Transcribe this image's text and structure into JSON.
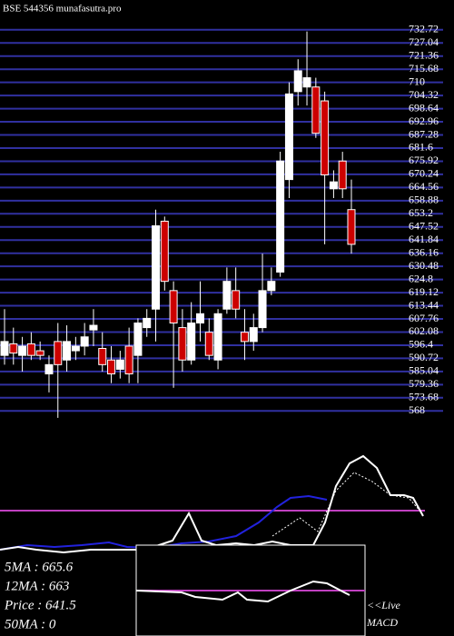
{
  "chart_data": {
    "type": "candlestick",
    "title": "BSE 544356 munafasutra.pro",
    "ohlc": [
      [
        592,
        612,
        588,
        598
      ],
      [
        597,
        604,
        588,
        593
      ],
      [
        592,
        600,
        585,
        596
      ],
      [
        597,
        602,
        590,
        592
      ],
      [
        594,
        598,
        590,
        592
      ],
      [
        584,
        592,
        576,
        588
      ],
      [
        598,
        606,
        565,
        588
      ],
      [
        590,
        605,
        585,
        598
      ],
      [
        594,
        600,
        590,
        596
      ],
      [
        596,
        606,
        592,
        600
      ],
      [
        603,
        612,
        596,
        605
      ],
      [
        595,
        602,
        585,
        588
      ],
      [
        590,
        596,
        580,
        584
      ],
      [
        586,
        594,
        582,
        590
      ],
      [
        596,
        604,
        580,
        584
      ],
      [
        592,
        608,
        580,
        606
      ],
      [
        604,
        612,
        600,
        608
      ],
      [
        612,
        655,
        598,
        648
      ],
      [
        650,
        652,
        620,
        624
      ],
      [
        620,
        624,
        578,
        606
      ],
      [
        604,
        612,
        585,
        590
      ],
      [
        590,
        615,
        588,
        606
      ],
      [
        606,
        624,
        598,
        610
      ],
      [
        602,
        608,
        590,
        592
      ],
      [
        590,
        612,
        586,
        610
      ],
      [
        612,
        630,
        610,
        624
      ],
      [
        620,
        630,
        608,
        612
      ],
      [
        602,
        612,
        590,
        598
      ],
      [
        598,
        610,
        594,
        604
      ],
      [
        604,
        636,
        602,
        620
      ],
      [
        620,
        630,
        618,
        624
      ],
      [
        628,
        680,
        626,
        676
      ],
      [
        668,
        710,
        660,
        705
      ],
      [
        706,
        720,
        700,
        715
      ],
      [
        708,
        732,
        700,
        712
      ],
      [
        708,
        712,
        686,
        688
      ],
      [
        702,
        706,
        640,
        670
      ],
      [
        664,
        672,
        660,
        667
      ],
      [
        676,
        680,
        660,
        664
      ],
      [
        655,
        668,
        636,
        640
      ]
    ],
    "up_color": "#ffffff",
    "down_color": "#cc0000",
    "grid": true,
    "grid_color": "#3030a0",
    "ylim": [
      563,
      735
    ],
    "yticks": [
      732.72,
      727.04,
      721.36,
      715.68,
      710,
      704.32,
      698.64,
      692.96,
      687.28,
      681.6,
      675.92,
      670.24,
      664.56,
      658.88,
      653.2,
      647.52,
      641.84,
      636.16,
      630.48,
      624.8,
      619.12,
      613.44,
      607.76,
      602.08,
      596.4,
      590.72,
      585.04,
      579.36,
      573.68,
      568
    ]
  },
  "info": {
    "ma5": "5MA : 665.6",
    "ma12": "12MA : 663",
    "price": "Price  : 641.5",
    "ma50": "50MA : 0",
    "live": "<<Live",
    "macd": "MACD"
  }
}
